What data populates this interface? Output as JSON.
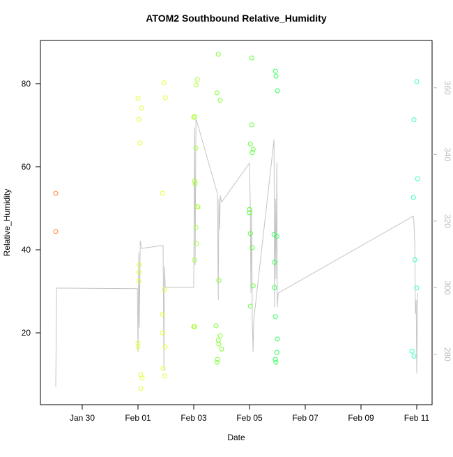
{
  "chart_data": {
    "type": "scatter",
    "title": "ATOM2 Southbound Relative_Humidity",
    "x_label": "Date",
    "y_label": "Relative_Humidity",
    "xlim": [
      28.5,
      42.55
    ],
    "ylim": [
      2.7,
      90.4
    ],
    "y2lim": [
      264.9,
      374.2
    ],
    "xticks": [
      {
        "value": 30,
        "label": "Jan 30"
      },
      {
        "value": 32,
        "label": "Feb 01"
      },
      {
        "value": 34,
        "label": "Feb 03"
      },
      {
        "value": 36,
        "label": "Feb 05"
      },
      {
        "value": 38,
        "label": "Feb 07"
      },
      {
        "value": 40,
        "label": "Feb 09"
      },
      {
        "value": 42,
        "label": "Feb 11"
      }
    ],
    "yticks": [
      20,
      40,
      60,
      80
    ],
    "y2ticks": [
      280,
      300,
      320,
      340,
      360
    ],
    "series": [
      {
        "color": "#ff7f33",
        "x": [
          29.05,
          29.05
        ],
        "values": [
          53.6,
          44.4
        ]
      },
      {
        "color": "#e5ff33",
        "x": [
          32.0,
          32.03,
          32.13,
          32.08,
          32.05,
          32.05,
          32.03,
          32.0,
          32.0,
          32.1,
          32.15,
          32.1,
          32.93,
          32.98,
          32.88,
          32.95,
          32.88,
          32.88,
          32.98,
          32.9,
          32.95
        ],
        "values": [
          76.5,
          71.4,
          74.1,
          65.7,
          36.3,
          34.6,
          32.4,
          17.5,
          16.6,
          9.9,
          9.1,
          6.6,
          80.2,
          76.6,
          53.6,
          30.4,
          24.5,
          20.0,
          16.6,
          11.4,
          9.6
        ]
      },
      {
        "color": "#a6ff33",
        "x": [
          34.13,
          34.08,
          34.03,
          34.0,
          34.08,
          34.03,
          34.05,
          34.13,
          34.15,
          34.08,
          34.1,
          34.03,
          34.03,
          34.0
        ],
        "values": [
          81.0,
          79.7,
          72.1,
          71.9,
          64.5,
          56.6,
          55.9,
          50.4,
          50.3,
          45.4,
          41.5,
          37.5,
          21.5,
          21.5
        ]
      },
      {
        "color": "#80ff33",
        "x": [
          34.88,
          34.83,
          34.95,
          34.9,
          34.8,
          34.95,
          34.88,
          34.9,
          35.0,
          34.85,
          34.83
        ],
        "values": [
          87.1,
          77.8,
          76.0,
          32.6,
          21.7,
          19.3,
          18.2,
          17.3,
          16.1,
          13.6,
          12.9
        ]
      },
      {
        "color": "#5cff33",
        "x": [
          36.08,
          36.08,
          36.03,
          36.13,
          36.1,
          36.0,
          36.0,
          36.03,
          36.1,
          36.13,
          36.03
        ],
        "values": [
          86.2,
          70.1,
          65.5,
          64.2,
          63.4,
          49.7,
          48.9,
          43.9,
          40.5,
          31.3,
          26.4
        ]
      },
      {
        "color": "#33ff59",
        "x": [
          36.93,
          36.95,
          37.0,
          36.88,
          36.98,
          36.9,
          36.9,
          36.93,
          37.0,
          36.98,
          36.93,
          36.95
        ],
        "values": [
          83.0,
          81.8,
          78.3,
          43.7,
          43.2,
          37.0,
          30.9,
          23.9,
          18.5,
          15.3,
          13.6,
          12.9
        ]
      },
      {
        "color": "#33ffc0",
        "x": [
          42.0,
          41.9,
          42.03,
          41.88,
          41.93,
          42.0,
          41.83,
          41.9
        ],
        "values": [
          80.5,
          71.3,
          57.1,
          52.6,
          37.6,
          30.8,
          15.6,
          14.4
        ]
      },
      {
        "type": "line",
        "axis": "y2",
        "color": "#c4c4c4",
        "x": [
          29.05,
          29.08,
          31.98,
          32.0,
          32.03,
          32.05,
          32.08,
          32.13,
          32.9,
          32.93,
          32.95,
          32.98,
          34.0,
          34.03,
          34.05,
          34.08,
          34.85,
          34.88,
          34.9,
          34.93,
          34.95,
          35.0,
          36.0,
          36.03,
          36.05,
          36.08,
          36.1,
          36.13,
          36.15,
          36.88,
          36.9,
          36.93,
          36.95,
          36.98,
          37.0,
          37.03,
          41.88,
          41.9,
          41.93,
          41.95,
          41.98,
          42.0,
          42.03
        ],
        "values": [
          270.2,
          299.9,
          299.7,
          280.6,
          310.6,
          288.0,
          314.1,
          311.8,
          312.7,
          275.4,
          306.4,
          300.1,
          300.1,
          348.1,
          306.8,
          350.8,
          328.2,
          296.3,
          326.7,
          317.3,
          327.7,
          325.7,
          337.4,
          323.6,
          298.4,
          323.6,
          290.1,
          280.6,
          290.1,
          344.5,
          294.2,
          326.7,
          302.6,
          337.6,
          294.2,
          298.4,
          321.5,
          319.4,
          313.1,
          292.1,
          296.3,
          274.3,
          298.4
        ]
      }
    ]
  }
}
